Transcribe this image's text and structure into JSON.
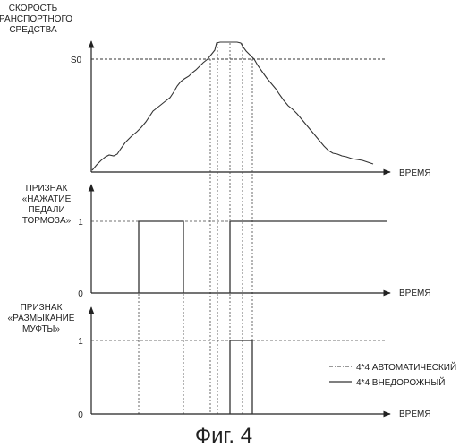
{
  "panel1": {
    "ylabel": [
      "СКОРОСТЬ",
      "ТРАНСПОРТНОГО",
      "СРЕДСТВА"
    ],
    "level_label": "S0",
    "xlabel": "ВРЕМЯ"
  },
  "panel2": {
    "ylabel": [
      "ПРИЗНАК",
      "«НАЖАТИЕ",
      "ПЕДАЛИ",
      "ТОРМОЗА»"
    ],
    "one_label": "1",
    "zero_label": "0",
    "xlabel": "ВРЕМЯ"
  },
  "panel3": {
    "ylabel": [
      "ПРИЗНАК",
      "«РАЗМЫКАНИЕ",
      "МУФТЫ»"
    ],
    "one_label": "1",
    "zero_label": "0",
    "xlabel": "ВРЕМЯ"
  },
  "legend": {
    "auto_label": "4*4 АВТОМАТИЧЕСКИЙ",
    "offroad_label": "4*4 ВНЕДОРОЖНЫЙ"
  },
  "caption": "Фиг. 4"
}
